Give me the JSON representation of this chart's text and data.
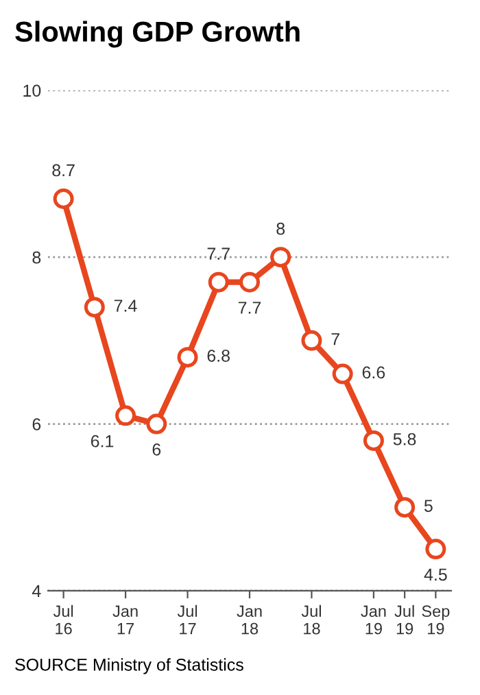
{
  "chart_data": {
    "type": "line",
    "title": "Slowing GDP Growth",
    "categories": [
      "Jul 16",
      null,
      "Jan 17",
      null,
      "Jul 17",
      null,
      "Jan 18",
      null,
      "Jul 18",
      null,
      "Jan 19",
      "Jul 19",
      "Sep 19"
    ],
    "series": [
      {
        "color": "#e8461e",
        "values": [
          8.7,
          7.4,
          6.1,
          6,
          6.8,
          7.7,
          7.7,
          8,
          7,
          6.6,
          5.8,
          5,
          4.5
        ]
      }
    ],
    "ylim": [
      4,
      10
    ],
    "yticks": [
      4,
      6,
      8,
      10
    ],
    "grid": "y",
    "marker": "circle",
    "line_style": "solid",
    "data_labels": true,
    "annotations": [
      "SOURCE Ministry of Statistics"
    ]
  }
}
